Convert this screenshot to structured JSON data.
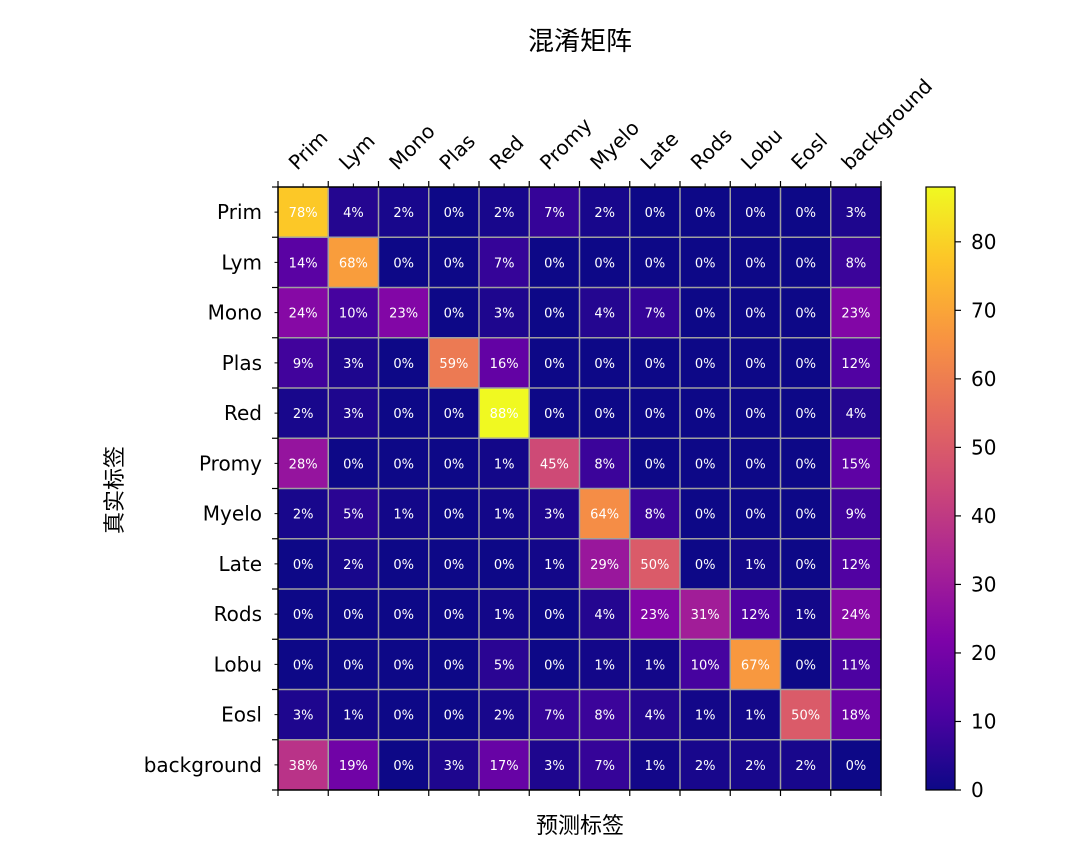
{
  "chart_data": {
    "type": "heatmap",
    "title": "混淆矩阵",
    "xlabel": "预测标签",
    "ylabel": "真实标签",
    "x_categories": [
      "Prim",
      "Lym",
      "Mono",
      "Plas",
      "Red",
      "Promy",
      "Myelo",
      "Late",
      "Rods",
      "Lobu",
      "Eosl",
      "background"
    ],
    "y_categories": [
      "Prim",
      "Lym",
      "Mono",
      "Plas",
      "Red",
      "Promy",
      "Myelo",
      "Late",
      "Rods",
      "Lobu",
      "Eosl",
      "background"
    ],
    "values": [
      [
        78,
        4,
        2,
        0,
        2,
        7,
        2,
        0,
        0,
        0,
        0,
        3
      ],
      [
        14,
        68,
        0,
        0,
        7,
        0,
        0,
        0,
        0,
        0,
        0,
        8
      ],
      [
        24,
        10,
        23,
        0,
        3,
        0,
        4,
        7,
        0,
        0,
        0,
        23
      ],
      [
        9,
        3,
        0,
        59,
        16,
        0,
        0,
        0,
        0,
        0,
        0,
        12
      ],
      [
        2,
        3,
        0,
        0,
        88,
        0,
        0,
        0,
        0,
        0,
        0,
        4
      ],
      [
        28,
        0,
        0,
        0,
        1,
        45,
        8,
        0,
        0,
        0,
        0,
        15
      ],
      [
        2,
        5,
        1,
        0,
        1,
        3,
        64,
        8,
        0,
        0,
        0,
        9
      ],
      [
        0,
        2,
        0,
        0,
        0,
        1,
        29,
        50,
        0,
        1,
        0,
        12
      ],
      [
        0,
        0,
        0,
        0,
        1,
        0,
        4,
        23,
        31,
        12,
        1,
        24
      ],
      [
        0,
        0,
        0,
        0,
        5,
        0,
        1,
        1,
        10,
        67,
        0,
        11
      ],
      [
        3,
        1,
        0,
        0,
        2,
        7,
        8,
        4,
        1,
        1,
        50,
        18
      ],
      [
        38,
        19,
        0,
        3,
        17,
        3,
        7,
        1,
        2,
        2,
        2,
        0
      ]
    ],
    "value_suffix": "%",
    "colorbar": {
      "min": 0,
      "max": 88,
      "ticks": [
        0,
        10,
        20,
        30,
        40,
        50,
        60,
        70,
        80
      ]
    },
    "colormap": "plasma",
    "grid": true,
    "grid_color": "#a0a0a0",
    "cell_text_color": "#ffffff",
    "legend": "colorbar-right"
  }
}
